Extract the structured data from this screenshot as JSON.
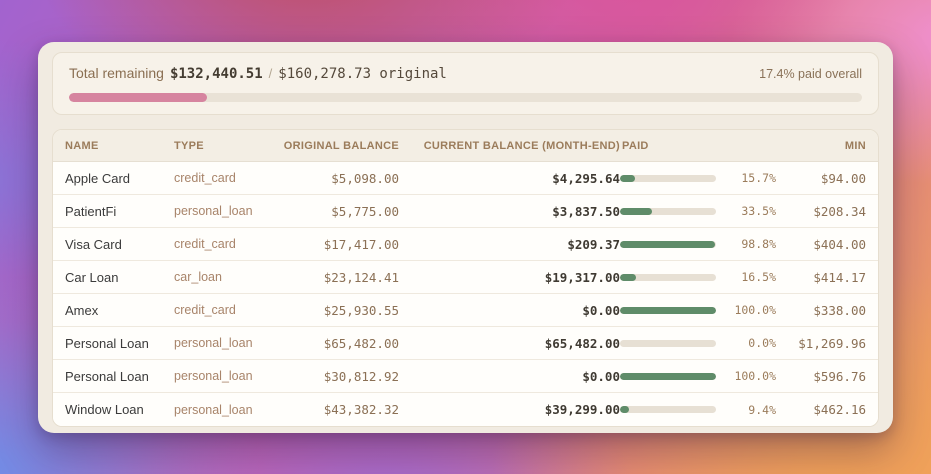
{
  "summary": {
    "label": "Total remaining",
    "remaining": "$132,440.51",
    "separator": "/",
    "original": "$160,278.73 original",
    "paid_overall": "17.4% paid overall",
    "progress_pct": 17.4
  },
  "table": {
    "columns": [
      "NAME",
      "TYPE",
      "ORIGINAL BALANCE",
      "CURRENT BALANCE (MONTH-END)",
      "PAID",
      "MIN"
    ],
    "rows": [
      {
        "name": "Apple Card",
        "type": "credit_card",
        "original_balance": "$5,098.00",
        "current_balance": "$4,295.64",
        "paid_pct": 15.7,
        "paid_label": "15.7%",
        "min": "$94.00"
      },
      {
        "name": "PatientFi",
        "type": "personal_loan",
        "original_balance": "$5,775.00",
        "current_balance": "$3,837.50",
        "paid_pct": 33.5,
        "paid_label": "33.5%",
        "min": "$208.34"
      },
      {
        "name": "Visa Card",
        "type": "credit_card",
        "original_balance": "$17,417.00",
        "current_balance": "$209.37",
        "paid_pct": 98.8,
        "paid_label": "98.8%",
        "min": "$404.00"
      },
      {
        "name": "Car Loan",
        "type": "car_loan",
        "original_balance": "$23,124.41",
        "current_balance": "$19,317.00",
        "paid_pct": 16.5,
        "paid_label": "16.5%",
        "min": "$414.17"
      },
      {
        "name": "Amex",
        "type": "credit_card",
        "original_balance": "$25,930.55",
        "current_balance": "$0.00",
        "paid_pct": 100.0,
        "paid_label": "100.0%",
        "min": "$338.00"
      },
      {
        "name": "Personal Loan",
        "type": "personal_loan",
        "original_balance": "$65,482.00",
        "current_balance": "$65,482.00",
        "paid_pct": 0.0,
        "paid_label": "0.0%",
        "min": "$1,269.96"
      },
      {
        "name": "Personal Loan",
        "type": "personal_loan",
        "original_balance": "$30,812.92",
        "current_balance": "$0.00",
        "paid_pct": 100.0,
        "paid_label": "100.0%",
        "min": "$596.76"
      },
      {
        "name": "Window Loan",
        "type": "personal_loan",
        "original_balance": "$43,382.32",
        "current_balance": "$39,299.00",
        "paid_pct": 9.4,
        "paid_label": "9.4%",
        "min": "$462.16"
      }
    ]
  },
  "colors": {
    "overall_progress": "#d6849f",
    "row_progress": "#5f8c69",
    "card_background": "#f1ebe1",
    "accent_text": "#9b7c5b"
  }
}
